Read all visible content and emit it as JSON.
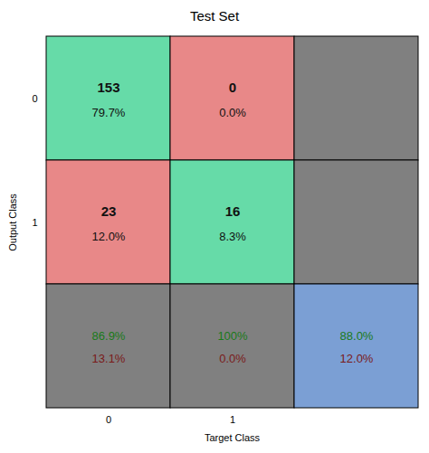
{
  "chart_data": {
    "type": "confusion_matrix",
    "title": "Test Set",
    "xlabel": "Target Class",
    "ylabel": "Output Class",
    "x": [
      "0",
      "1",
      null
    ],
    "y": [
      "0",
      "1",
      null
    ],
    "colors": [
      [
        "#66dba8",
        "#e88888",
        "#808080"
      ],
      [
        "#e88888",
        "#66dba8",
        "#808080"
      ],
      [
        "#808080",
        "#808080",
        "#7b9fd4"
      ]
    ],
    "counts": [
      [
        153,
        0
      ],
      [
        23,
        16
      ]
    ],
    "percent": [
      [
        79.7,
        0.0
      ],
      [
        12.0,
        8.3
      ]
    ],
    "percent_labels": [
      [
        "79.7%",
        "0.0%"
      ],
      [
        "12.0%",
        "8.3%"
      ]
    ],
    "text_color": "#111111",
    "summary": {
      "correct": {
        "color": "#1a7a1a",
        "values": [
          86.9,
          100,
          88.0
        ],
        "value_labels": [
          "86.9%",
          "100%",
          "88.0%"
        ]
      },
      "error": {
        "color": "#7a1a1a",
        "values": [
          13.1,
          0.0,
          12.0
        ],
        "value_labels": [
          "13.1%",
          "0.0%",
          "12.0%"
        ]
      }
    }
  }
}
